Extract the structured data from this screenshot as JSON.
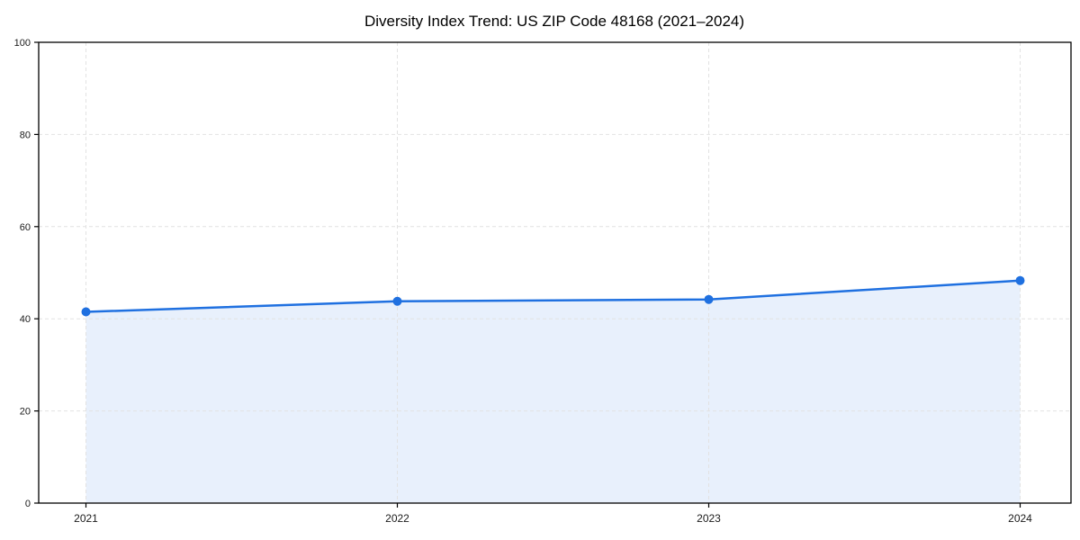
{
  "figure": {
    "background": "#ffffff"
  },
  "chart_data": {
    "type": "area",
    "title": "Diversity Index Trend: US ZIP Code 48168 (2021–2024)",
    "categories": [
      "2021",
      "2022",
      "2023",
      "2024"
    ],
    "values": [
      41.5,
      43.8,
      44.2,
      48.3
    ],
    "series_name": "Diversity Index",
    "xlabel": "",
    "ylabel": "",
    "ylim": [
      0,
      100
    ],
    "yticks": [
      0,
      20,
      40,
      60,
      80,
      100
    ],
    "grid": true,
    "grid_style": "dashed",
    "legend": false,
    "marker": "circle",
    "colors": {
      "line": "#1f70e0",
      "marker": "#1f70e0",
      "fill": "rgba(31,112,224,0.10)",
      "grid": "#e2e2e2",
      "spine": "#000000",
      "tick": "#000000",
      "tick_label": "#1a1a1a",
      "title": "#000000",
      "background": "#ffffff"
    }
  }
}
